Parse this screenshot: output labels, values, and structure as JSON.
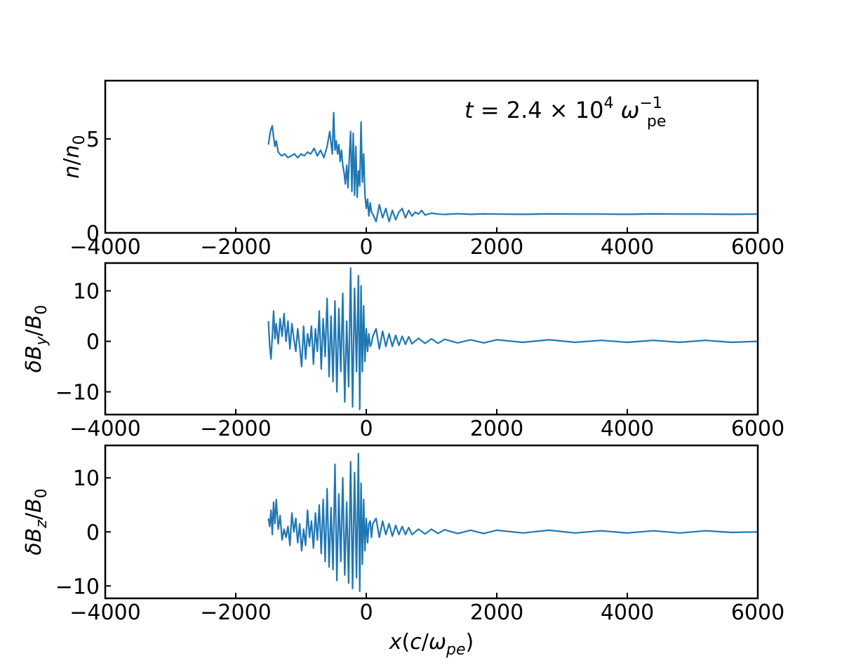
{
  "figure": {
    "xlabel": "x(c/ω_pe)",
    "annotation": "t = 2.4 × 10^4 ω_pe^-1"
  },
  "chart_data": [
    {
      "type": "line",
      "id": "density",
      "ylabel": "n/n₀",
      "xlim": [
        -4000,
        6000
      ],
      "ylim": [
        0,
        8.1
      ],
      "xticks": [
        -4000,
        -2000,
        0,
        2000,
        4000,
        6000
      ],
      "yticks": [
        0,
        5
      ],
      "color": "#1f77b4",
      "series": [
        {
          "x": [
            -1500,
            -1470,
            -1440,
            -1420,
            -1400,
            -1380,
            -1350,
            -1300,
            -1250,
            -1200,
            -1150,
            -1100,
            -1050,
            -1000,
            -950,
            -900,
            -850,
            -800,
            -750,
            -700,
            -650,
            -600,
            -560,
            -520,
            -500,
            -480,
            -460,
            -440,
            -420,
            -400,
            -380,
            -360,
            -340,
            -320,
            -300,
            -280,
            -260,
            -240,
            -220,
            -200,
            -180,
            -160,
            -140,
            -120,
            -100,
            -80,
            -60,
            -40,
            -20,
            0,
            20,
            40,
            60,
            80,
            100,
            150,
            200,
            250,
            300,
            350,
            400,
            450,
            500,
            550,
            600,
            650,
            700,
            750,
            800,
            850,
            900,
            1000,
            1100,
            1200,
            1400,
            1600,
            1800,
            2000,
            2400,
            2800,
            3200,
            3600,
            4000,
            4400,
            4800,
            5200,
            5600,
            6000
          ],
          "y": [
            4.7,
            5.4,
            5.7,
            5.1,
            4.6,
            4.9,
            4.3,
            4.1,
            4.2,
            4.0,
            4.1,
            4.2,
            4.0,
            4.2,
            4.1,
            4.3,
            4.2,
            4.5,
            4.1,
            4.4,
            4.0,
            4.6,
            5.4,
            4.2,
            6.4,
            4.4,
            4.9,
            4.2,
            4.7,
            3.8,
            4.4,
            3.6,
            3.2,
            2.6,
            3.6,
            2.4,
            4.0,
            5.4,
            2.2,
            5.3,
            2.0,
            4.6,
            1.9,
            3.3,
            2.5,
            5.9,
            2.7,
            4.2,
            2.0,
            1.3,
            1.8,
            0.9,
            1.6,
            1.1,
            1.0,
            0.6,
            1.5,
            0.8,
            1.3,
            0.6,
            1.2,
            0.7,
            1.1,
            1.3,
            0.8,
            1.2,
            0.9,
            1.1,
            1.0,
            1.2,
            0.95,
            1.05,
            1.0,
            0.98,
            1.02,
            0.99,
            1.01,
            1.0,
            0.99,
            1.01,
            1.0,
            1.0,
            0.99,
            1.01,
            1.0,
            1.0,
            0.99,
            1.0
          ]
        }
      ]
    },
    {
      "type": "line",
      "id": "dBy",
      "ylabel": "δB_y/B₀",
      "xlim": [
        -4000,
        6000
      ],
      "ylim": [
        -14.5,
        15.5
      ],
      "xticks": [
        -4000,
        -2000,
        0,
        2000,
        4000,
        6000
      ],
      "yticks": [
        -10,
        0,
        10
      ],
      "color": "#1f77b4",
      "series": [
        {
          "x": [
            -1500,
            -1480,
            -1460,
            -1440,
            -1420,
            -1400,
            -1380,
            -1350,
            -1320,
            -1290,
            -1260,
            -1230,
            -1200,
            -1170,
            -1140,
            -1110,
            -1080,
            -1050,
            -1020,
            -990,
            -960,
            -930,
            -900,
            -870,
            -840,
            -810,
            -780,
            -750,
            -720,
            -690,
            -660,
            -630,
            -600,
            -570,
            -540,
            -510,
            -480,
            -450,
            -420,
            -390,
            -360,
            -330,
            -300,
            -270,
            -240,
            -210,
            -180,
            -150,
            -120,
            -100,
            -80,
            -60,
            -40,
            -20,
            0,
            20,
            40,
            60,
            80,
            100,
            150,
            200,
            250,
            300,
            350,
            400,
            450,
            500,
            550,
            600,
            650,
            700,
            800,
            900,
            1000,
            1100,
            1200,
            1400,
            1600,
            1800,
            2000,
            2400,
            2800,
            3200,
            3600,
            4000,
            4400,
            4800,
            5200,
            5600,
            6000
          ],
          "y": [
            4.0,
            -1.0,
            -3.5,
            1.0,
            6.0,
            0.5,
            3.5,
            -0.5,
            4.5,
            1.0,
            5.5,
            0.0,
            4.0,
            -1.5,
            3.5,
            0.5,
            -2.0,
            2.5,
            -1.0,
            -5.0,
            3.0,
            -3.5,
            1.5,
            -1.0,
            3.0,
            -4.5,
            2.5,
            -2.0,
            6.0,
            -5.5,
            4.5,
            -3.0,
            8.5,
            -7.0,
            5.0,
            -8.0,
            8.0,
            -10.0,
            6.5,
            -6.0,
            9.5,
            -12.0,
            4.0,
            -9.0,
            14.5,
            -13.0,
            10.5,
            -6.0,
            13.0,
            -13.5,
            11.0,
            -6.0,
            7.0,
            -4.0,
            2.5,
            -2.0,
            1.5,
            -1.0,
            -0.5,
            1.0,
            2.5,
            -1.5,
            2.0,
            -1.0,
            1.5,
            -1.0,
            1.2,
            -0.8,
            1.0,
            -0.6,
            0.9,
            -0.5,
            0.6,
            -0.4,
            0.5,
            -0.4,
            0.4,
            -0.3,
            0.3,
            -0.3,
            0.3,
            -0.2,
            0.3,
            -0.2,
            0.2,
            -0.2,
            0.2,
            -0.2,
            0.2,
            -0.2,
            0.0
          ]
        }
      ]
    },
    {
      "type": "line",
      "id": "dBz",
      "ylabel": "δB_z/B₀",
      "xlim": [
        -4000,
        6000
      ],
      "ylim": [
        -12.3,
        16.0
      ],
      "xticks": [
        -4000,
        -2000,
        0,
        2000,
        4000,
        6000
      ],
      "yticks": [
        -10,
        0,
        10
      ],
      "color": "#1f77b4",
      "series": [
        {
          "x": [
            -1500,
            -1480,
            -1460,
            -1440,
            -1420,
            -1400,
            -1380,
            -1350,
            -1320,
            -1290,
            -1260,
            -1230,
            -1200,
            -1170,
            -1140,
            -1110,
            -1080,
            -1050,
            -1020,
            -990,
            -960,
            -930,
            -900,
            -870,
            -840,
            -810,
            -780,
            -750,
            -720,
            -690,
            -660,
            -630,
            -600,
            -570,
            -540,
            -510,
            -480,
            -450,
            -420,
            -390,
            -360,
            -330,
            -300,
            -270,
            -240,
            -210,
            -180,
            -150,
            -120,
            -100,
            -80,
            -60,
            -40,
            -20,
            0,
            20,
            40,
            60,
            80,
            100,
            150,
            200,
            250,
            300,
            350,
            400,
            450,
            500,
            550,
            600,
            650,
            700,
            800,
            900,
            1000,
            1100,
            1200,
            1400,
            1600,
            1800,
            2000,
            2400,
            2800,
            3200,
            3600,
            4000,
            4400,
            4800,
            5200,
            5600,
            6000
          ],
          "y": [
            2.5,
            1.0,
            4.0,
            -0.5,
            5.5,
            1.5,
            6.0,
            0.5,
            3.0,
            -1.5,
            0.5,
            -1.0,
            1.0,
            -2.5,
            3.5,
            0.0,
            2.5,
            -2.0,
            1.5,
            -3.5,
            0.5,
            -2.5,
            4.0,
            -1.0,
            2.0,
            -3.0,
            3.5,
            -1.5,
            5.0,
            -4.0,
            6.0,
            -5.5,
            8.0,
            -6.5,
            4.5,
            -7.0,
            12.5,
            -9.0,
            7.0,
            -5.5,
            10.0,
            -8.0,
            5.5,
            -9.5,
            13.0,
            -10.5,
            11.0,
            -8.5,
            14.5,
            -11.0,
            9.0,
            -6.0,
            6.0,
            -3.5,
            2.5,
            -2.0,
            1.5,
            2.0,
            -1.0,
            1.5,
            2.5,
            -1.0,
            2.0,
            -0.5,
            1.5,
            -0.8,
            1.2,
            -0.5,
            1.0,
            -0.5,
            0.8,
            -0.5,
            0.5,
            -0.4,
            0.5,
            -0.3,
            0.4,
            -0.3,
            0.3,
            -0.3,
            0.3,
            -0.2,
            0.3,
            -0.2,
            0.2,
            -0.2,
            0.2,
            -0.2,
            0.2,
            -0.1,
            0.0
          ]
        }
      ]
    }
  ]
}
